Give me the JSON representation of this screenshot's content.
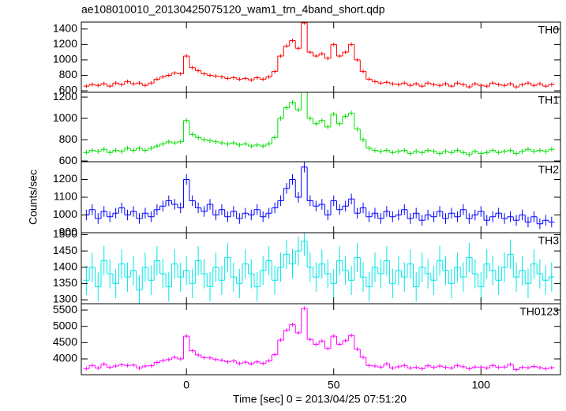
{
  "chart_data": {
    "type": "step",
    "title": "ae108010010_20130425075120_wam1_trn_4band_short.qdp",
    "xlabel": "Time [sec] 0 = 2013/04/25 07:51:20",
    "ylabel": "Counts/sec",
    "xlim": [
      -35.7,
      127
    ],
    "xticks": [
      0,
      50,
      100
    ],
    "x": [
      -34,
      -32,
      -30,
      -28,
      -26,
      -24,
      -22,
      -20,
      -18,
      -16,
      -14,
      -12,
      -10,
      -8,
      -6,
      -4,
      -2,
      0,
      2,
      4,
      6,
      8,
      10,
      12,
      14,
      16,
      18,
      20,
      22,
      24,
      26,
      28,
      30,
      32,
      34,
      36,
      38,
      40,
      42,
      44,
      46,
      48,
      50,
      52,
      54,
      56,
      58,
      60,
      62,
      64,
      66,
      68,
      70,
      72,
      74,
      76,
      78,
      80,
      82,
      84,
      86,
      88,
      90,
      92,
      94,
      96,
      98,
      100,
      102,
      104,
      106,
      108,
      110,
      112,
      114,
      116,
      118,
      120,
      122,
      124
    ],
    "panels": [
      {
        "name": "TH0",
        "color": "#ff0000",
        "error": 25,
        "ylim": [
          580,
          1490
        ],
        "yticks": [
          600,
          800,
          1000,
          1200,
          1400
        ],
        "values": [
          660,
          680,
          670,
          690,
          660,
          700,
          680,
          720,
          690,
          700,
          670,
          700,
          750,
          780,
          800,
          830,
          820,
          1050,
          900,
          860,
          820,
          800,
          790,
          780,
          760,
          770,
          750,
          760,
          740,
          770,
          750,
          780,
          850,
          1050,
          1180,
          1250,
          1150,
          1480,
          1100,
          1050,
          1080,
          1020,
          1200,
          1050,
          1100,
          1200,
          1000,
          850,
          750,
          720,
          700,
          710,
          690,
          680,
          700,
          670,
          690,
          660,
          700,
          680,
          670,
          690,
          660,
          700,
          680,
          650,
          690,
          670,
          660,
          700,
          680,
          670,
          690,
          650,
          680,
          700,
          670,
          690,
          660,
          680
        ]
      },
      {
        "name": "TH1",
        "color": "#00e000",
        "error": 22,
        "ylim": [
          593,
          1245
        ],
        "yticks": [
          600,
          800,
          1000,
          1200
        ],
        "values": [
          680,
          700,
          690,
          710,
          680,
          700,
          690,
          720,
          700,
          720,
          700,
          720,
          740,
          760,
          780,
          770,
          780,
          980,
          850,
          820,
          800,
          790,
          780,
          770,
          760,
          770,
          750,
          760,
          740,
          750,
          740,
          760,
          820,
          1000,
          1100,
          1150,
          1080,
          1280,
          1000,
          950,
          980,
          920,
          1040,
          950,
          1020,
          1050,
          900,
          800,
          720,
          700,
          690,
          700,
          680,
          690,
          700,
          670,
          690,
          680,
          700,
          690,
          670,
          690,
          680,
          700,
          680,
          660,
          690,
          670,
          680,
          700,
          680,
          690,
          700,
          670,
          690,
          710,
          690,
          700,
          690,
          710
        ]
      },
      {
        "name": "TH2",
        "color": "#0000ff",
        "error": 30,
        "ylim": [
          900,
          1300
        ],
        "yticks": [
          900,
          1000,
          1100,
          1200
        ],
        "values": [
          1000,
          1030,
          980,
          1020,
          990,
          1010,
          1040,
          1000,
          1020,
          980,
          1010,
          990,
          1030,
          1050,
          1080,
          1060,
          1040,
          1200,
          1080,
          1040,
          1020,
          1060,
          1000,
          1030,
          990,
          1020,
          980,
          1010,
          1000,
          1030,
          990,
          1010,
          1040,
          1080,
          1150,
          1200,
          1100,
          1270,
          1080,
          1050,
          1060,
          1000,
          1080,
          1030,
          1050,
          1090,
          1010,
          1040,
          990,
          1010,
          980,
          1020,
          990,
          1000,
          1030,
          980,
          1010,
          970,
          1000,
          990,
          1020,
          980,
          1010,
          990,
          1030,
          980,
          1000,
          1020,
          970,
          990,
          1010,
          980,
          990,
          970,
          1000,
          960,
          990,
          950,
          970,
          960
        ]
      },
      {
        "name": "TH3",
        "color": "#00e8e8",
        "error": 45,
        "ylim": [
          1288,
          1506
        ],
        "yticks": [
          1300,
          1350,
          1400,
          1450,
          1500
        ],
        "values": [
          1360,
          1400,
          1340,
          1420,
          1380,
          1350,
          1410,
          1370,
          1390,
          1330,
          1400,
          1360,
          1420,
          1380,
          1340,
          1410,
          1370,
          1390,
          1350,
          1420,
          1380,
          1340,
          1400,
          1360,
          1430,
          1370,
          1350,
          1410,
          1380,
          1340,
          1390,
          1420,
          1360,
          1400,
          1440,
          1410,
          1450,
          1480,
          1400,
          1370,
          1410,
          1380,
          1350,
          1420,
          1390,
          1360,
          1430,
          1370,
          1340,
          1400,
          1380,
          1420,
          1350,
          1390,
          1370,
          1410,
          1340,
          1400,
          1380,
          1360,
          1420,
          1390,
          1350,
          1400,
          1370,
          1430,
          1380,
          1340,
          1410,
          1390,
          1360,
          1400,
          1440,
          1370,
          1390,
          1350,
          1410,
          1380,
          1360,
          1370
        ]
      },
      {
        "name": "TH0123",
        "color": "#ff00ff",
        "error": 60,
        "ylim": [
          3515,
          5695
        ],
        "yticks": [
          4000,
          4500,
          5000,
          5500
        ],
        "values": [
          3700,
          3800,
          3720,
          3840,
          3740,
          3780,
          3820,
          3800,
          3810,
          3720,
          3780,
          3790,
          3890,
          3950,
          3980,
          4050,
          4000,
          4700,
          4250,
          4120,
          4040,
          4030,
          3980,
          3960,
          3910,
          3940,
          3860,
          3900,
          3850,
          3910,
          3860,
          3940,
          4130,
          4580,
          4880,
          5050,
          4800,
          5550,
          4600,
          4450,
          4550,
          4320,
          4700,
          4450,
          4560,
          4720,
          4300,
          4050,
          3800,
          3780,
          3750,
          3850,
          3720,
          3760,
          3800,
          3720,
          3740,
          3700,
          3790,
          3740,
          3780,
          3740,
          3720,
          3800,
          3760,
          3700,
          3750,
          3750,
          3720,
          3800,
          3740,
          3750,
          3830,
          3670,
          3740,
          3730,
          3770,
          3730,
          3700,
          3730
        ]
      }
    ]
  }
}
